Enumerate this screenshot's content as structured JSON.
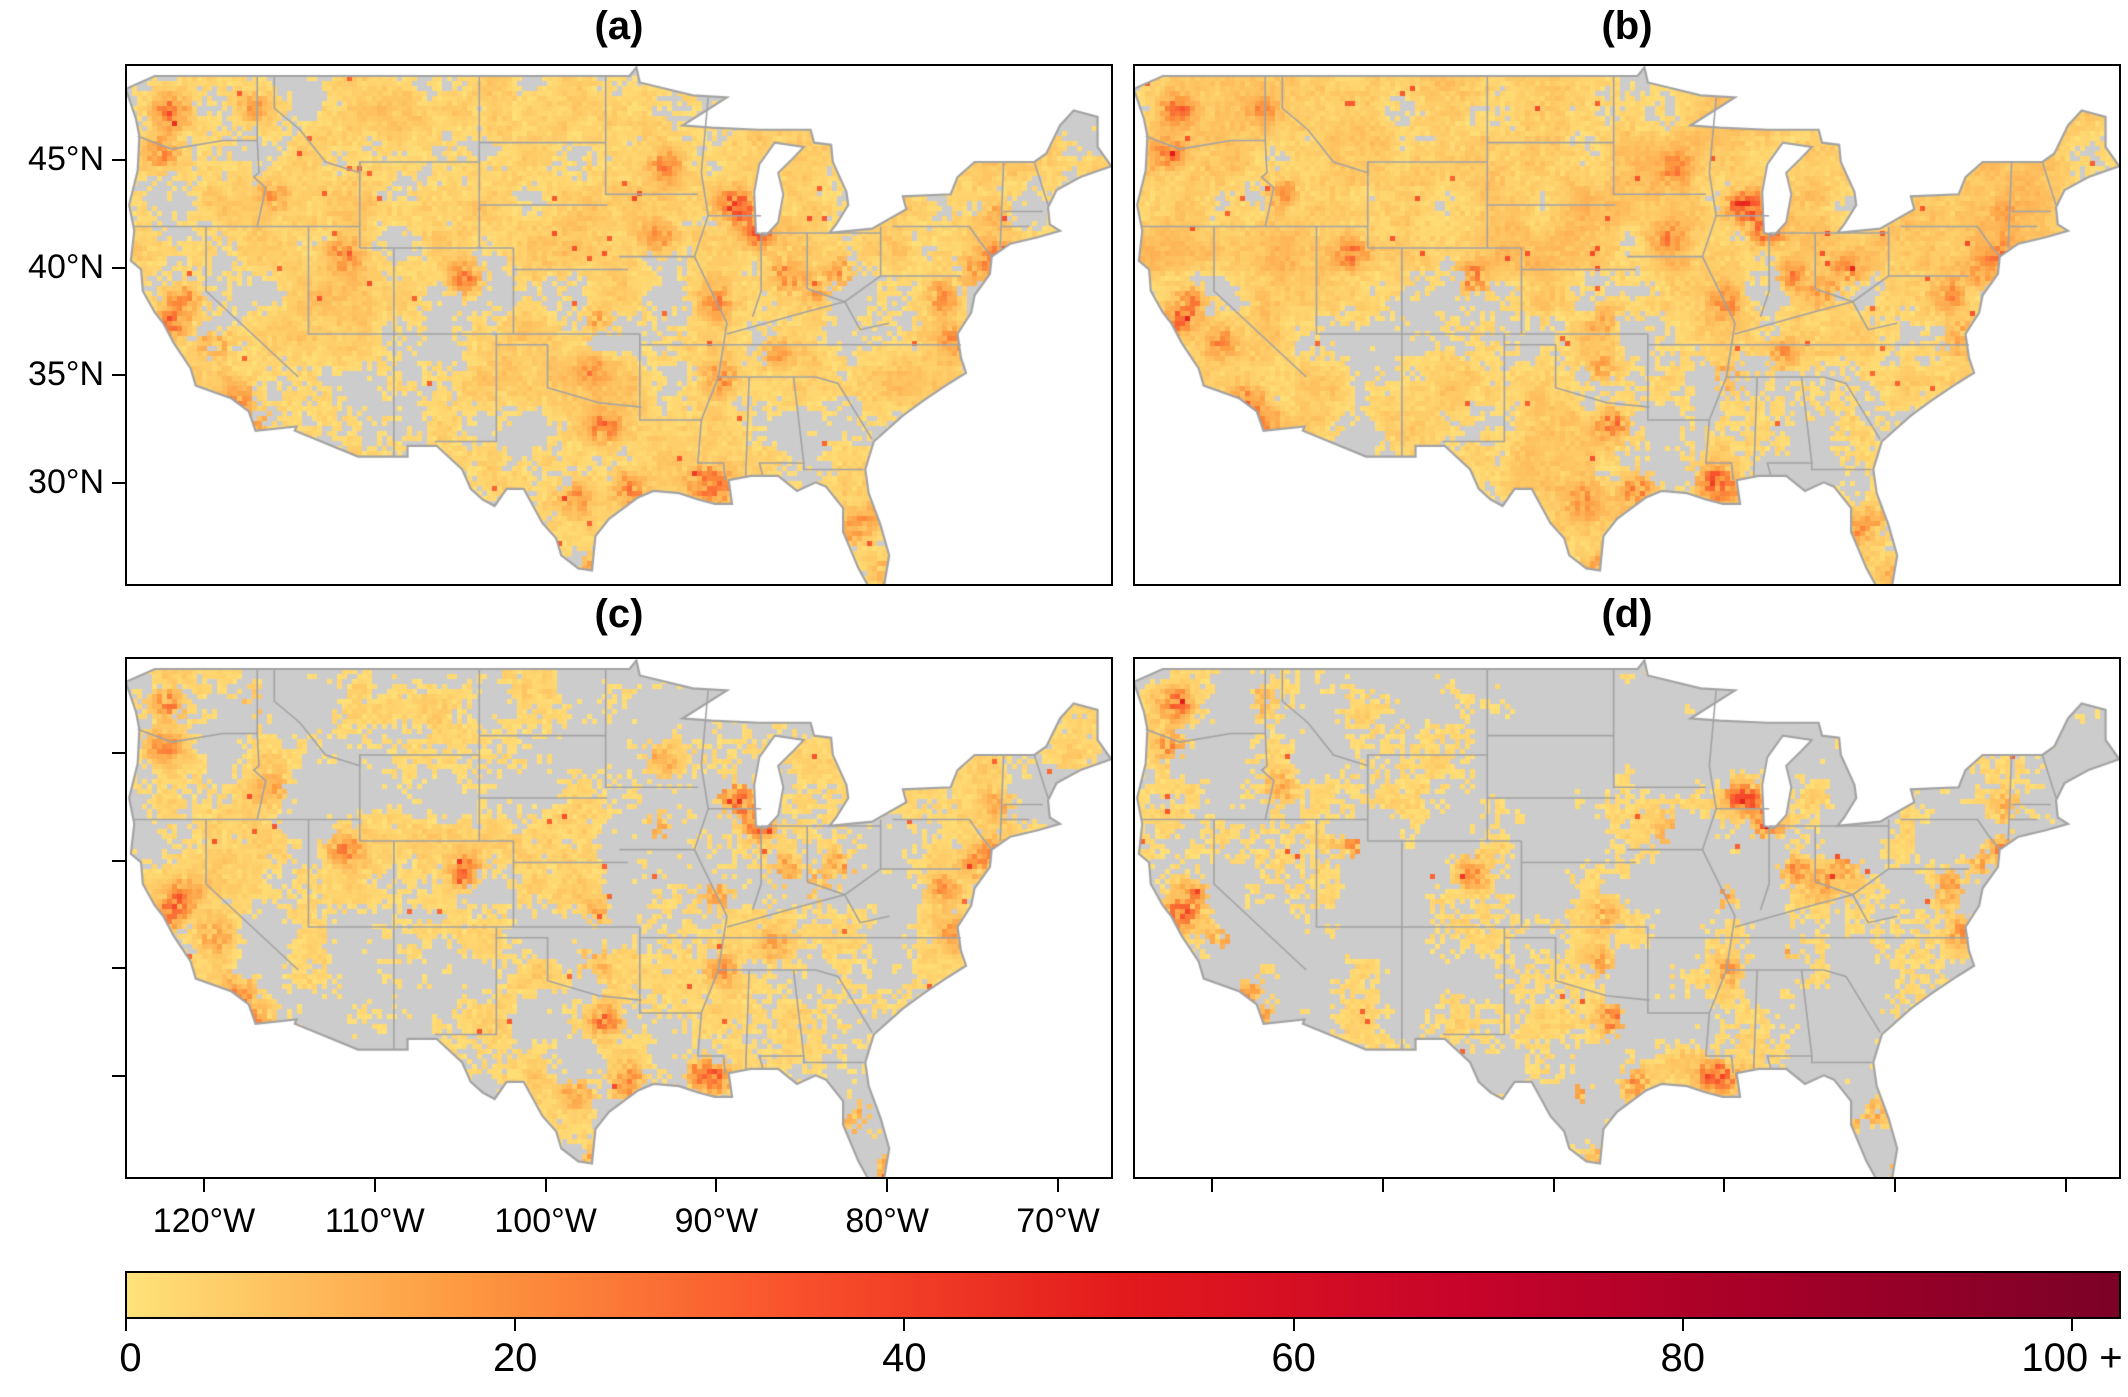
{
  "panels": [
    {
      "label": "(a)"
    },
    {
      "label": "(b)"
    },
    {
      "label": "(c)"
    },
    {
      "label": "(d)"
    }
  ],
  "axes": {
    "lat_labels": [
      "45°N",
      "40°N",
      "35°N",
      "30°N"
    ],
    "lon_labels": [
      "120°W",
      "110°W",
      "100°W",
      "90°W",
      "80°W",
      "70°W"
    ]
  },
  "chart_data": {
    "type": "heatmap",
    "title": "",
    "panels": [
      "(a)",
      "(b)",
      "(c)",
      "(d)"
    ],
    "latitude_ticks": [
      45,
      40,
      35,
      30
    ],
    "longitude_ticks": [
      -120,
      -110,
      -100,
      -90,
      -80,
      -70
    ],
    "colorbar": {
      "range": [
        0,
        100
      ],
      "tick_values": [
        0,
        20,
        40,
        60,
        80,
        100
      ],
      "tick_labels": [
        "0",
        "20",
        "40",
        "60",
        "80",
        "100 +"
      ],
      "colors": [
        "#ffe27a",
        "#fd9a40",
        "#f9522c",
        "#e31a1c",
        "#c8042a",
        "#a30028",
        "#7b0127"
      ],
      "placement": "bottom"
    },
    "no_data_color": "#cccccc"
  }
}
